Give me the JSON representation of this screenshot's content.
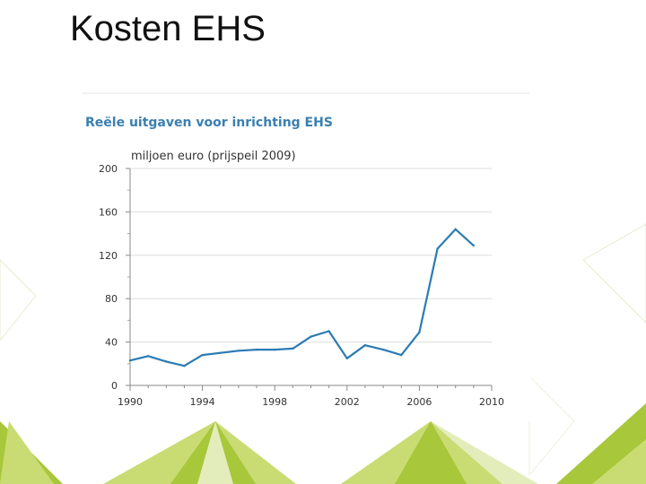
{
  "slide": {
    "title": "Kosten EHS"
  },
  "colors": {
    "accent": "#3a7fb0",
    "line": "#2b7bb4",
    "deco_green": "#a8c73a",
    "deco_light": "#dbe8a6",
    "axis_text": "#333333",
    "grid": "#dedede"
  },
  "chart_data": {
    "type": "line",
    "title": "Reële uitgaven voor inrichting EHS",
    "ylabel": "miljoen euro (prijspeil 2009)",
    "xlabel": "",
    "xlim": [
      1990,
      2010
    ],
    "ylim": [
      0,
      200
    ],
    "x_ticks": [
      1990,
      1994,
      1998,
      2002,
      2006,
      2010
    ],
    "y_ticks": [
      0,
      40,
      80,
      120,
      160,
      200
    ],
    "grid": true,
    "series": [
      {
        "x": [
          1990,
          1991,
          1992,
          1993,
          1994,
          1995,
          1996,
          1997,
          1998,
          1999,
          2000,
          2001,
          2002,
          2003,
          2004,
          2005,
          2006,
          2007,
          2008,
          2009
        ],
        "values": [
          23,
          27,
          22,
          18,
          28,
          30,
          32,
          33,
          33,
          34,
          45,
          50,
          25,
          37,
          33,
          28,
          49,
          126,
          144,
          129
        ]
      }
    ]
  }
}
